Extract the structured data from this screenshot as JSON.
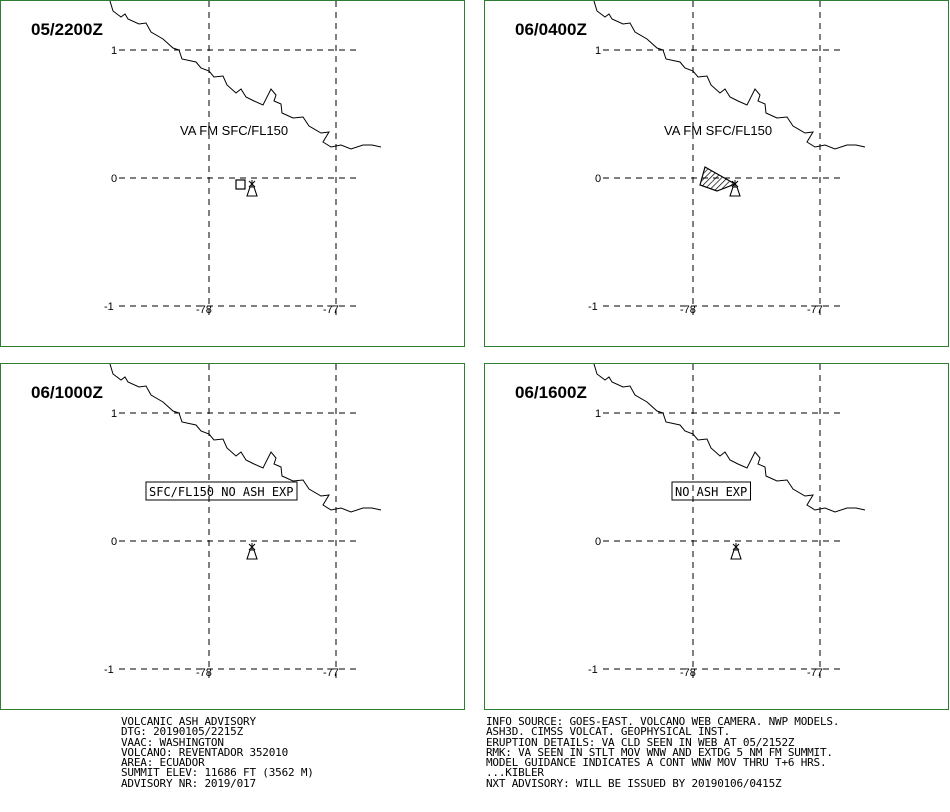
{
  "panels": [
    {
      "time": "05/2200Z",
      "label": "VA FM SFC/FL150",
      "label_boxed": false,
      "ash": "box"
    },
    {
      "time": "06/0400Z",
      "label": "VA FM SFC/FL150",
      "label_boxed": false,
      "ash": "polygon"
    },
    {
      "time": "06/1000Z",
      "label": "SFC/FL150 NO ASH EXP",
      "label_boxed": true,
      "ash": "none"
    },
    {
      "time": "06/1600Z",
      "label": "NO ASH EXP",
      "label_boxed": true,
      "ash": "none"
    }
  ],
  "axes": {
    "lat_ticks": [
      "1",
      "0",
      "-1"
    ],
    "lon_ticks": [
      "-78",
      "-77"
    ]
  },
  "volcano_icon": "volcano-icon",
  "colors": {
    "panel_border": "#2e7d32",
    "lines": "#000000"
  },
  "advisory_left": [
    "VOLCANIC ASH ADVISORY",
    "DTG: 20190105/2215Z",
    "VAAC: WASHINGTON",
    "VOLCANO: REVENTADOR 352010",
    "AREA: ECUADOR",
    "SUMMIT ELEV: 11686 FT (3562 M)",
    "ADVISORY NR: 2019/017"
  ],
  "advisory_right": [
    "INFO SOURCE: GOES-EAST. VOLCANO WEB CAMERA. NWP MODELS.",
    "ASH3D. CIMSS VOLCAT. GEOPHYSICAL INST.",
    "ERUPTION DETAILS: VA CLD SEEN IN WEB AT 05/2152Z",
    "RMK: VA SEEN IN STLT MOV WNW AND EXTDG 5 NM FM SUMMIT.",
    "MODEL GUIDANCE INDICATES A CONT WNW MOV THRU T+6 HRS.",
    "...KIBLER",
    "NXT ADVISORY: WILL BE ISSUED BY 20190106/0415Z"
  ]
}
